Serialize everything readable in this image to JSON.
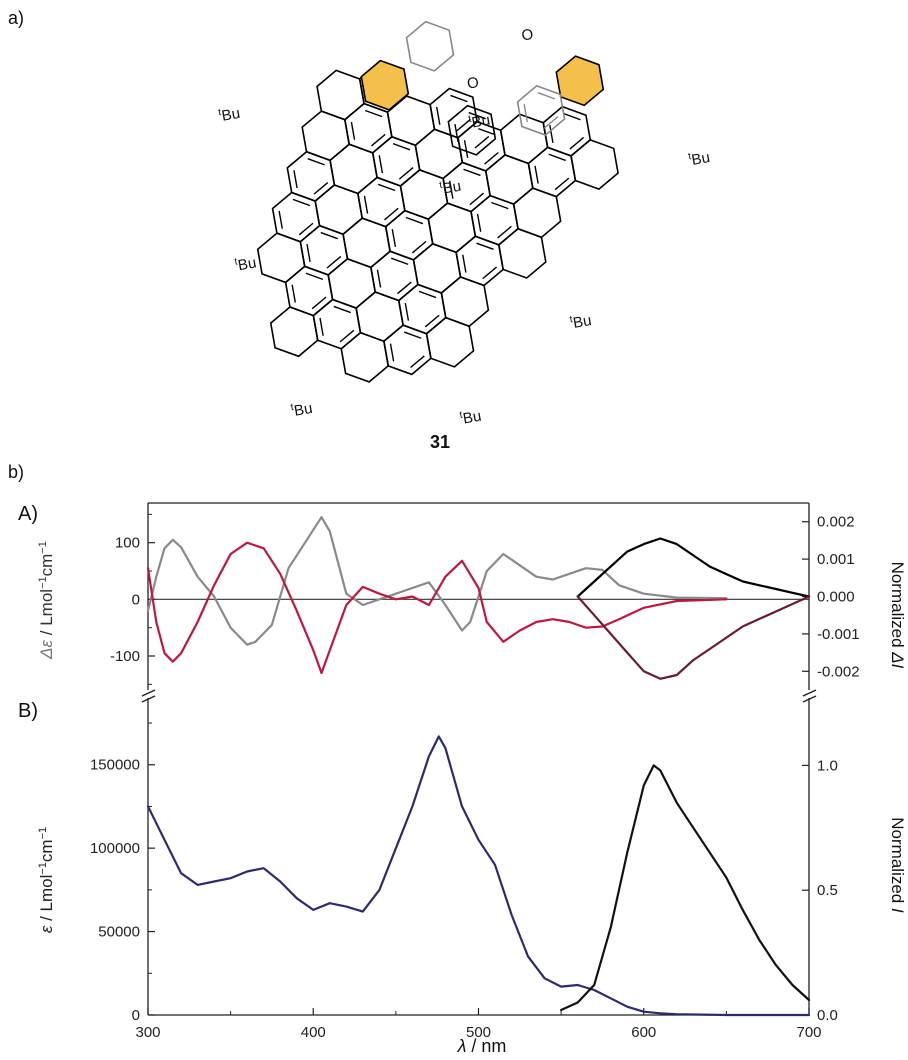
{
  "figure": {
    "panel_a_label": "a)",
    "panel_b_label": "b)",
    "compound_number": "31",
    "tBu": "Bu",
    "tBu_sup": "t",
    "carbonyl": "O"
  },
  "chart_data": [
    {
      "id": "A",
      "panel_label": "A)",
      "type": "line",
      "xlim": [
        300,
        700
      ],
      "ylim_left": [
        -160,
        170
      ],
      "ylim_right": [
        -0.0025,
        0.0025
      ],
      "left_ylabel_sym": "Δε",
      "left_ylabel_unit": " / Lmol",
      "left_ylabel_sup": "−1",
      "left_ylabel_unit2": "cm",
      "left_ylabel_sup2": "−1",
      "right_ylabel_text": "Normalized ",
      "right_ylabel_sym": "ΔI",
      "yticks_left": [
        -100,
        0,
        100
      ],
      "ytick_labels_left": [
        "-100",
        "0",
        "100"
      ],
      "yticks_right": [
        -0.002,
        -0.001,
        0.0,
        0.001,
        0.002
      ],
      "ytick_labels_right": [
        "-0.002",
        "-0.001",
        "0.000",
        "0.001",
        "0.002"
      ],
      "zero_line": true,
      "series": [
        {
          "color": "#8a8a8a",
          "axis": "left",
          "x": [
            300,
            305,
            310,
            315,
            320,
            330,
            340,
            350,
            360,
            365,
            375,
            385,
            395,
            405,
            410,
            420,
            430,
            440,
            450,
            460,
            470,
            480,
            490,
            495,
            505,
            515,
            525,
            535,
            545,
            555,
            565,
            575,
            585,
            600,
            620,
            650
          ],
          "y": [
            -20,
            40,
            90,
            105,
            92,
            40,
            5,
            -50,
            -80,
            -75,
            -45,
            55,
            100,
            145,
            120,
            10,
            -10,
            0,
            10,
            20,
            30,
            -10,
            -55,
            -40,
            50,
            80,
            60,
            40,
            35,
            45,
            55,
            52,
            25,
            10,
            3,
            2
          ]
        },
        {
          "color": "#c0173f",
          "axis": "left",
          "x": [
            300,
            305,
            310,
            315,
            320,
            330,
            340,
            350,
            360,
            370,
            380,
            390,
            400,
            405,
            410,
            420,
            430,
            440,
            450,
            460,
            470,
            480,
            490,
            500,
            505,
            515,
            525,
            535,
            545,
            555,
            565,
            575,
            585,
            600,
            620,
            650
          ],
          "y": [
            55,
            -40,
            -95,
            -110,
            -95,
            -40,
            25,
            80,
            100,
            90,
            45,
            -20,
            -90,
            -130,
            -90,
            -10,
            22,
            10,
            0,
            5,
            -10,
            40,
            68,
            20,
            -40,
            -75,
            -55,
            -40,
            -35,
            -40,
            -50,
            -48,
            -35,
            -15,
            -3,
            0
          ]
        },
        {
          "color": "#000000",
          "axis": "right",
          "x": [
            560,
            570,
            580,
            590,
            600,
            610,
            620,
            630,
            640,
            650,
            660,
            670,
            680,
            690,
            700
          ],
          "y": [
            0.0,
            0.0004,
            0.0008,
            0.0012,
            0.0014,
            0.00155,
            0.0014,
            0.0011,
            0.0008,
            0.0006,
            0.0004,
            0.0003,
            0.0002,
            0.0001,
            0.0
          ]
        },
        {
          "color": "#6a1a33",
          "axis": "right",
          "x": [
            560,
            570,
            580,
            590,
            600,
            610,
            620,
            630,
            640,
            650,
            660,
            670,
            680,
            690,
            700
          ],
          "y": [
            0.0,
            -0.0005,
            -0.001,
            -0.0015,
            -0.002,
            -0.0022,
            -0.0021,
            -0.0017,
            -0.0014,
            -0.0011,
            -0.0008,
            -0.0006,
            -0.0004,
            -0.0002,
            0.0
          ]
        }
      ]
    },
    {
      "id": "B",
      "panel_label": "B)",
      "type": "line",
      "xlim": [
        300,
        700
      ],
      "ylim_left": [
        0,
        190000
      ],
      "ylim_right": [
        0,
        1.27
      ],
      "left_ylabel_sym": "ε",
      "left_ylabel_unit": " / Lmol",
      "left_ylabel_sup": "−1",
      "left_ylabel_unit2": "cm",
      "left_ylabel_sup2": "−1",
      "right_ylabel_text": "Normalized ",
      "right_ylabel_sym": "I",
      "xlabel_sym": "λ",
      "xlabel_unit": " / nm",
      "xticks": [
        300,
        400,
        500,
        600,
        700
      ],
      "xtick_labels": [
        "300",
        "400",
        "500",
        "600",
        "700"
      ],
      "yticks_left": [
        0,
        50000,
        100000,
        150000
      ],
      "ytick_labels_left": [
        "0",
        "50000",
        "100000",
        "150000"
      ],
      "yticks_right": [
        0.0,
        0.5,
        1.0
      ],
      "ytick_labels_right": [
        "0.0",
        "0.5",
        "1.0"
      ],
      "series": [
        {
          "color": "#2b2b6e",
          "axis": "left",
          "x": [
            300,
            310,
            320,
            330,
            340,
            350,
            360,
            370,
            380,
            390,
            400,
            410,
            420,
            430,
            440,
            450,
            460,
            470,
            476,
            480,
            490,
            500,
            510,
            520,
            530,
            540,
            550,
            560,
            570,
            580,
            590,
            600,
            610,
            620,
            650,
            700
          ],
          "y": [
            125000,
            105000,
            85000,
            78000,
            80000,
            82000,
            86000,
            88000,
            80000,
            70000,
            63000,
            67000,
            65000,
            62000,
            75000,
            100000,
            125000,
            155000,
            167000,
            160000,
            125000,
            105000,
            90000,
            60000,
            35000,
            22000,
            17000,
            18000,
            15000,
            10000,
            5000,
            2000,
            1000,
            500,
            0,
            0
          ]
        },
        {
          "color": "#111111",
          "axis": "right",
          "x": [
            550,
            560,
            570,
            580,
            590,
            600,
            606,
            610,
            620,
            630,
            640,
            650,
            660,
            670,
            680,
            690,
            700
          ],
          "y": [
            0.02,
            0.05,
            0.12,
            0.35,
            0.65,
            0.92,
            1.0,
            0.98,
            0.85,
            0.75,
            0.65,
            0.55,
            0.42,
            0.3,
            0.2,
            0.12,
            0.06
          ]
        }
      ]
    }
  ]
}
